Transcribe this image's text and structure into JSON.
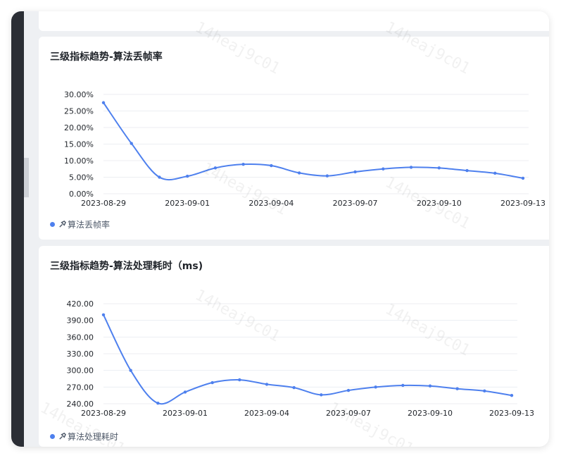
{
  "watermark": "14heaj9c01",
  "colors": {
    "accent": "#4e80ee",
    "grid": "#eceef2"
  },
  "charts": [
    {
      "title": "三级指标趋势-算法丢帧率",
      "legend": "算法丢帧率",
      "icon": "brush-icon"
    },
    {
      "title": "三级指标趋势-算法处理耗时（ms)",
      "legend": "算法处理耗时",
      "icon": "brush-icon"
    }
  ],
  "chart_data": [
    {
      "type": "line",
      "title": "三级指标趋势-算法丢帧率",
      "series": [
        {
          "name": "算法丢帧率",
          "values": [
            27.5,
            15.2,
            5.0,
            5.3,
            7.8,
            8.9,
            8.5,
            6.3,
            5.4,
            6.6,
            7.5,
            8.0,
            7.8,
            7.0,
            6.2,
            4.7
          ]
        }
      ],
      "x": [
        "2023-08-29",
        "2023-08-30",
        "2023-08-31",
        "2023-09-01",
        "2023-09-02",
        "2023-09-03",
        "2023-09-04",
        "2023-09-05",
        "2023-09-06",
        "2023-09-07",
        "2023-09-08",
        "2023-09-09",
        "2023-09-10",
        "2023-09-11",
        "2023-09-12",
        "2023-09-13"
      ],
      "x_tick_labels": [
        "2023-08-29",
        "2023-09-01",
        "2023-09-04",
        "2023-09-07",
        "2023-09-10",
        "2023-09-13"
      ],
      "y_tick_labels": [
        "0.00%",
        "5.00%",
        "10.00%",
        "15.00%",
        "20.00%",
        "25.00%",
        "30.00%"
      ],
      "y_ticks": [
        0,
        5,
        10,
        15,
        20,
        25,
        30
      ],
      "ylim": [
        0,
        30
      ],
      "grid": true,
      "legend_position": "bottom-left"
    },
    {
      "type": "line",
      "title": "三级指标趋势-算法处理耗时（ms)",
      "series": [
        {
          "name": "算法处理耗时",
          "values": [
            400,
            300,
            241,
            261,
            278,
            283,
            275,
            269,
            256,
            264,
            270,
            273,
            272,
            267,
            263,
            255
          ]
        }
      ],
      "x": [
        "2023-08-29",
        "2023-08-30",
        "2023-08-31",
        "2023-09-01",
        "2023-09-02",
        "2023-09-03",
        "2023-09-04",
        "2023-09-05",
        "2023-09-06",
        "2023-09-07",
        "2023-09-08",
        "2023-09-09",
        "2023-09-10",
        "2023-09-11",
        "2023-09-12",
        "2023-09-13"
      ],
      "x_tick_labels": [
        "2023-08-29",
        "2023-09-01",
        "2023-09-04",
        "2023-09-07",
        "2023-09-10",
        "2023-09-13"
      ],
      "y_tick_labels": [
        "240.00",
        "270.00",
        "300.00",
        "330.00",
        "360.00",
        "390.00",
        "420.00"
      ],
      "y_ticks": [
        240,
        270,
        300,
        330,
        360,
        390,
        420
      ],
      "ylim": [
        240,
        420
      ],
      "grid": true,
      "legend_position": "bottom-left"
    }
  ]
}
